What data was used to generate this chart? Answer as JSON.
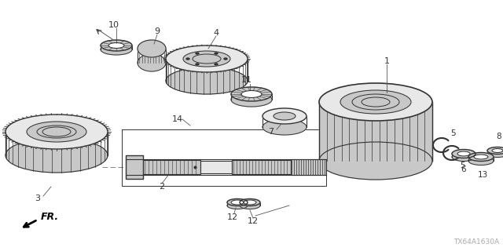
{
  "bg_color": "#ffffff",
  "lc": "#333333",
  "fc_light": "#e8e8e8",
  "fc_mid": "#c8c8c8",
  "fc_dark": "#999999",
  "watermark": "TX64A1630A",
  "figsize": [
    6.4,
    3.2
  ],
  "dpi": 100
}
